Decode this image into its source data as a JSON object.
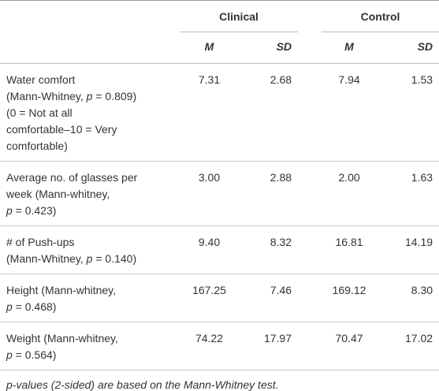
{
  "table": {
    "groups": [
      "Clinical",
      "Control"
    ],
    "subheaders": [
      "M",
      "SD",
      "M",
      "SD"
    ],
    "rows": [
      {
        "label": [
          [
            "Water comfort"
          ],
          [
            "(Mann-Whitney, ",
            "p",
            " = 0.809)"
          ],
          [
            "(0 = Not at all"
          ],
          [
            "comfortable–10 = Very"
          ],
          [
            "comfortable)"
          ]
        ],
        "values": [
          "7.31",
          "2.68",
          "7.94",
          "1.53"
        ]
      },
      {
        "label": [
          [
            "Average no. of glasses per"
          ],
          [
            "week (Mann-whitney,"
          ],
          [
            "",
            "p",
            " = 0.423)"
          ]
        ],
        "values": [
          "3.00",
          "2.88",
          "2.00",
          "1.63"
        ]
      },
      {
        "label": [
          [
            "# of Push-ups"
          ],
          [
            "(Mann-Whitney, ",
            "p",
            " = 0.140)"
          ]
        ],
        "values": [
          "9.40",
          "8.32",
          "16.81",
          "14.19"
        ]
      },
      {
        "label": [
          [
            "Height (Mann-whitney,"
          ],
          [
            "",
            "p",
            " = 0.468)"
          ]
        ],
        "values": [
          "167.25",
          "7.46",
          "169.12",
          "8.30"
        ]
      },
      {
        "label": [
          [
            "Weight (Mann-whitney,"
          ],
          [
            "",
            "p",
            " = 0.564)"
          ]
        ],
        "values": [
          "74.22",
          "17.97",
          "70.47",
          "17.02"
        ]
      }
    ]
  },
  "footnote": "p-values (2-sided) are based on the Mann-Whitney test."
}
